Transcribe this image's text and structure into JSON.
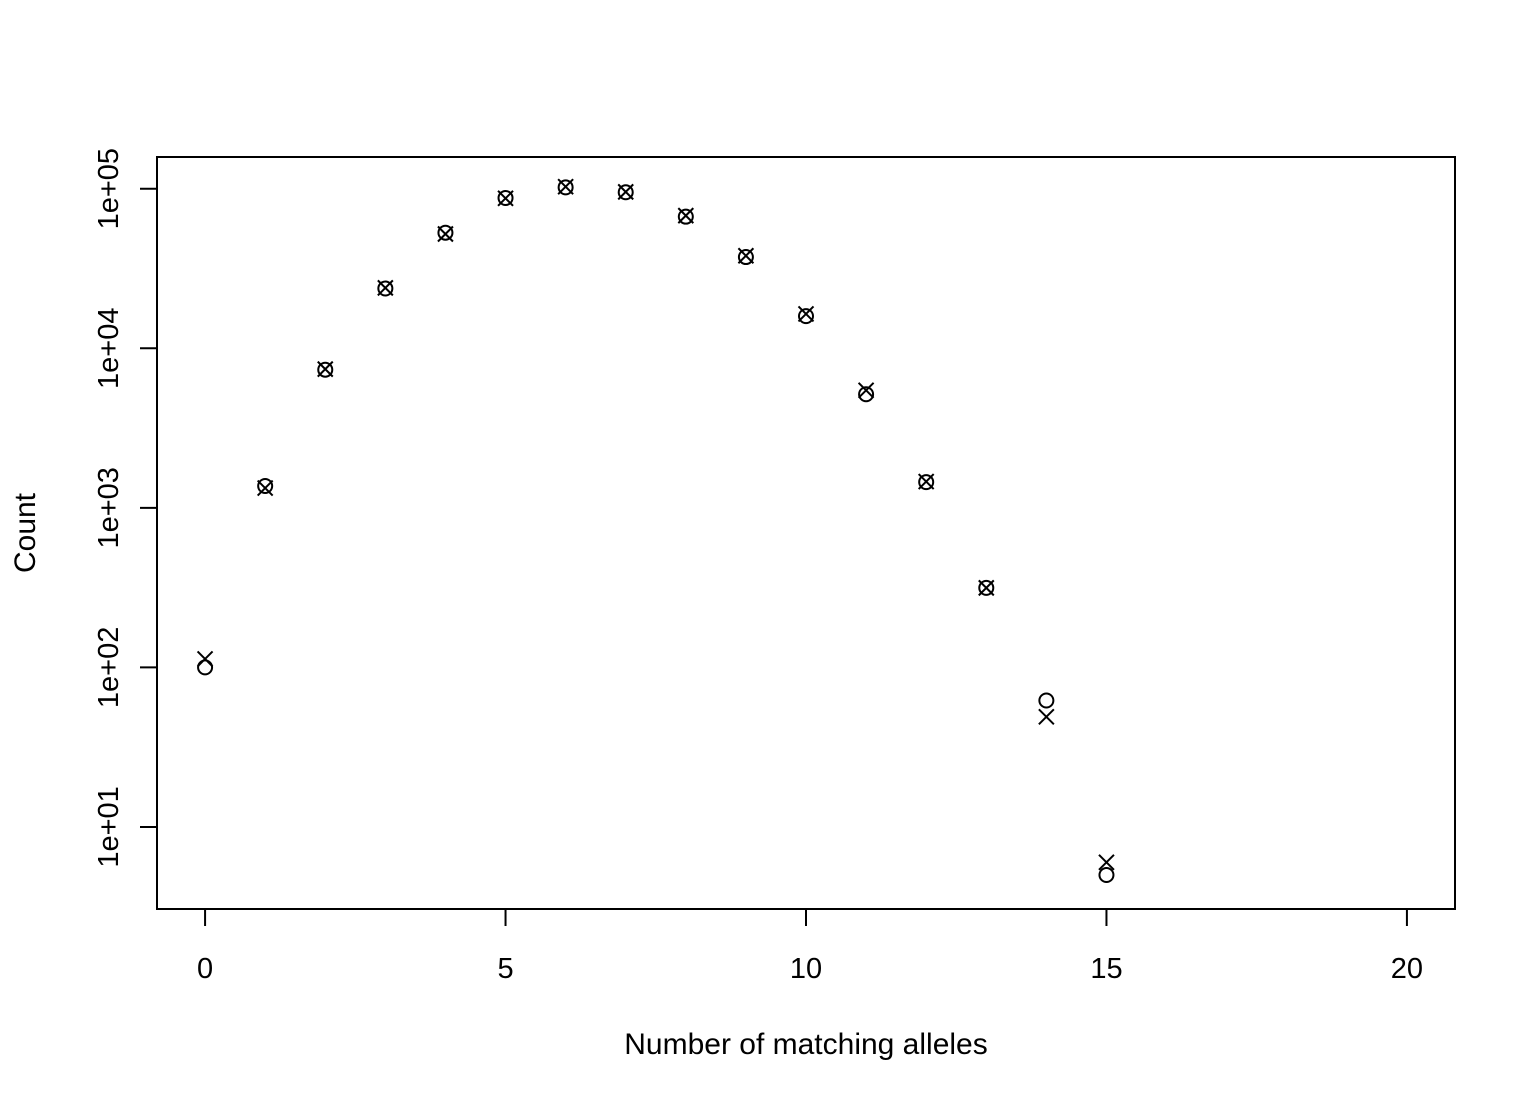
{
  "chart_data": {
    "type": "scatter",
    "title": "",
    "xlabel": "Number of matching alleles",
    "ylabel": "Count",
    "xlim": [
      -0.8,
      20.8
    ],
    "ylim": [
      3.06,
      158000
    ],
    "y_scale": "log",
    "grid": false,
    "legend": "none",
    "x_ticks": [
      0,
      5,
      10,
      15,
      20
    ],
    "x_tick_labels": [
      "0",
      "5",
      "10",
      "15",
      "20"
    ],
    "y_ticks": [
      10,
      100,
      1000,
      10000,
      100000
    ],
    "y_tick_labels": [
      "1e+01",
      "1e+02",
      "1e+03",
      "1e+04",
      "1e+05"
    ],
    "series": [
      {
        "marker": "circle",
        "x": [
          0,
          1,
          2,
          3,
          4,
          5,
          6,
          7,
          8,
          9,
          10,
          11,
          12,
          13,
          14,
          15
        ],
        "y": [
          100,
          1370,
          7340,
          23700,
          53000,
          87500,
          102000,
          95000,
          66800,
          37300,
          15900,
          5150,
          1450,
          315,
          62,
          5
        ]
      },
      {
        "marker": "cross",
        "x": [
          0,
          1,
          2,
          3,
          4,
          5,
          6,
          7,
          8,
          9,
          10,
          11,
          12,
          13,
          14,
          15
        ],
        "y": [
          113,
          1330,
          7400,
          23900,
          52000,
          87000,
          103000,
          95500,
          67800,
          38000,
          16400,
          5450,
          1460,
          315,
          49,
          6
        ]
      }
    ]
  }
}
